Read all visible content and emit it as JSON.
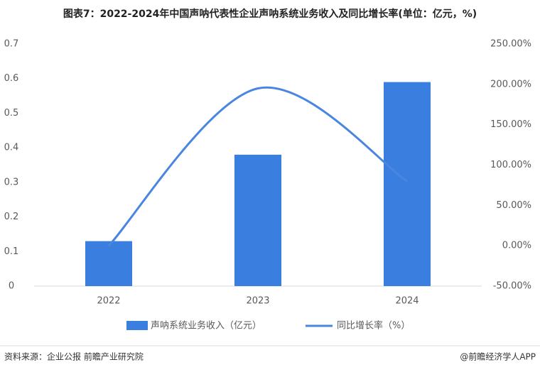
{
  "chart_data": {
    "type": "bar-line",
    "title": "图表7：2022-2024年中国声呐代表性企业声呐系统业务收入及同比增长率(单位：亿元，%)",
    "categories": [
      "2022",
      "2023",
      "2024"
    ],
    "series": [
      {
        "name": "声呐系统业务收入（亿元）",
        "color": "#3a7fe0",
        "type": "bar",
        "values": [
          0.13,
          0.38,
          0.59
        ]
      },
      {
        "name": "同比增长率（%）",
        "color": "#4a86e0",
        "type": "line",
        "axis": "y2",
        "values": [
          0,
          195,
          80
        ]
      }
    ],
    "ylim": [
      0,
      0.7
    ],
    "yticks": [
      {
        "value": 0,
        "label": "0"
      },
      0.1,
      0.2,
      0.3,
      0.4,
      0.5,
      0.6,
      0.7
    ],
    "y2lim": [
      -50,
      250
    ],
    "y2ticks": [
      {
        "value": -50,
        "label": "-50.00%"
      },
      {
        "value": 0,
        "label": "0.00%"
      },
      {
        "value": 50,
        "label": "50.00%"
      },
      {
        "value": 100,
        "label": "100.00%"
      },
      {
        "value": 150,
        "label": "150.00%"
      },
      {
        "value": 200,
        "label": "200.00%"
      },
      {
        "value": 250,
        "label": "250.00%"
      }
    ],
    "legend": "bottom",
    "source": "资料来源：企业公报 前瞻产业研究院",
    "credit": "@前瞻经济学人APP"
  }
}
